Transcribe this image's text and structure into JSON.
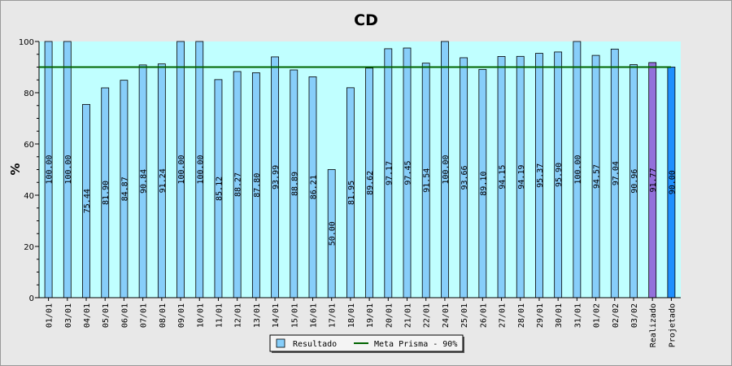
{
  "chart_data": {
    "type": "bar",
    "title": "CD",
    "ylabel": "%",
    "xlabel": "",
    "ylim": [
      0,
      100
    ],
    "yticks": [
      0,
      20,
      40,
      60,
      80,
      100
    ],
    "grid": false,
    "legend_position": "bottom-center",
    "categories": [
      "01/01",
      "03/01",
      "04/01",
      "05/01",
      "06/01",
      "07/01",
      "08/01",
      "09/01",
      "10/01",
      "11/01",
      "12/01",
      "13/01",
      "14/01",
      "15/01",
      "16/01",
      "17/01",
      "18/01",
      "19/01",
      "20/01",
      "21/01",
      "22/01",
      "24/01",
      "25/01",
      "26/01",
      "27/01",
      "28/01",
      "29/01",
      "30/01",
      "31/01",
      "01/02",
      "02/02",
      "03/02",
      "Realizado",
      "Projetado"
    ],
    "values": [
      100.0,
      100.0,
      75.44,
      81.9,
      84.87,
      90.84,
      91.24,
      100.0,
      100.0,
      85.12,
      88.27,
      87.8,
      93.99,
      88.89,
      86.21,
      50.0,
      81.95,
      89.62,
      97.17,
      97.45,
      91.54,
      100.0,
      93.66,
      89.1,
      94.15,
      94.19,
      95.37,
      95.9,
      100.0,
      94.57,
      97.04,
      90.96,
      91.77,
      90.0
    ],
    "value_labels": [
      "100.00",
      "100.00",
      "75.44",
      "81.90",
      "84.87",
      "90.84",
      "91.24",
      "100.00",
      "100.00",
      "85.12",
      "88.27",
      "87.80",
      "93.99",
      "88.89",
      "86.21",
      "50.00",
      "81.95",
      "89.62",
      "97.17",
      "97.45",
      "91.54",
      "100.00",
      "93.66",
      "89.10",
      "94.15",
      "94.19",
      "95.37",
      "95.90",
      "100.00",
      "94.57",
      "97.04",
      "90.96",
      "91.77",
      "90.00"
    ],
    "bar_colors": {
      "default": "#87cefa",
      "Realizado": "#9370db",
      "Projetado": "#1e90ff"
    },
    "reference_line": {
      "name": "Meta Prisma - 90%",
      "value": 90,
      "color": "#006400"
    },
    "series": [
      {
        "name": "Resultado",
        "color": "#87cefa"
      }
    ],
    "colors": {
      "plot_background": "#c0ffff",
      "page_background": "#e8e8e8"
    }
  }
}
